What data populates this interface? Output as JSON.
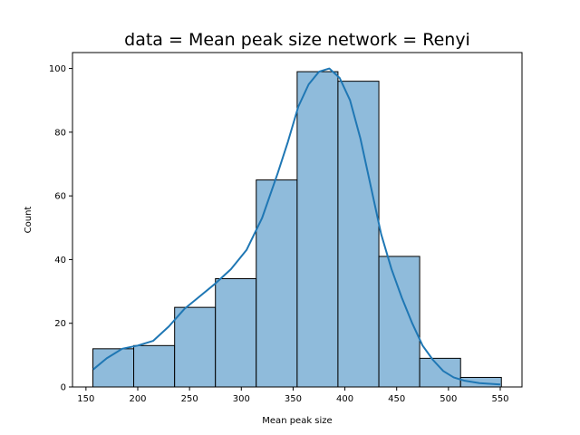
{
  "chart_data": {
    "type": "bar",
    "subtype": "histogram-with-kde",
    "title": "data = Mean peak size network = Renyi",
    "xlabel": "Mean peak size",
    "ylabel": "Count",
    "xlim": [
      137,
      571
    ],
    "ylim": [
      0,
      105
    ],
    "xticks": [
      150,
      200,
      250,
      300,
      350,
      400,
      450,
      500,
      550
    ],
    "yticks": [
      0,
      20,
      40,
      60,
      80,
      100
    ],
    "grid": false,
    "legend": "none",
    "bar_color": "#8fbbdb",
    "bar_edge_color": "#000000",
    "kde_color": "#1f77b4",
    "bins": [
      {
        "start": 156.7,
        "end": 196.1,
        "count": 12
      },
      {
        "start": 196.1,
        "end": 235.6,
        "count": 13
      },
      {
        "start": 235.6,
        "end": 275.0,
        "count": 25
      },
      {
        "start": 275.0,
        "end": 314.4,
        "count": 34
      },
      {
        "start": 314.4,
        "end": 353.9,
        "count": 65
      },
      {
        "start": 353.9,
        "end": 393.3,
        "count": 99
      },
      {
        "start": 393.3,
        "end": 432.8,
        "count": 96
      },
      {
        "start": 432.8,
        "end": 472.2,
        "count": 41
      },
      {
        "start": 472.2,
        "end": 511.7,
        "count": 9
      },
      {
        "start": 511.7,
        "end": 551.1,
        "count": 3
      }
    ],
    "kde": {
      "x": [
        157,
        170,
        185,
        200,
        215,
        230,
        245,
        260,
        275,
        290,
        305,
        320,
        335,
        345,
        355,
        365,
        375,
        385,
        395,
        405,
        415,
        425,
        435,
        445,
        455,
        465,
        475,
        485,
        495,
        505,
        515,
        530,
        550
      ],
      "y": [
        5.5,
        9,
        12,
        13,
        14.5,
        19,
        24.5,
        28.5,
        32.5,
        37,
        43,
        53,
        67,
        77,
        88,
        95,
        99,
        100,
        97,
        90,
        78,
        63,
        48,
        37,
        28,
        20,
        13,
        8.5,
        5,
        3,
        2,
        1.2,
        0.8
      ]
    }
  }
}
